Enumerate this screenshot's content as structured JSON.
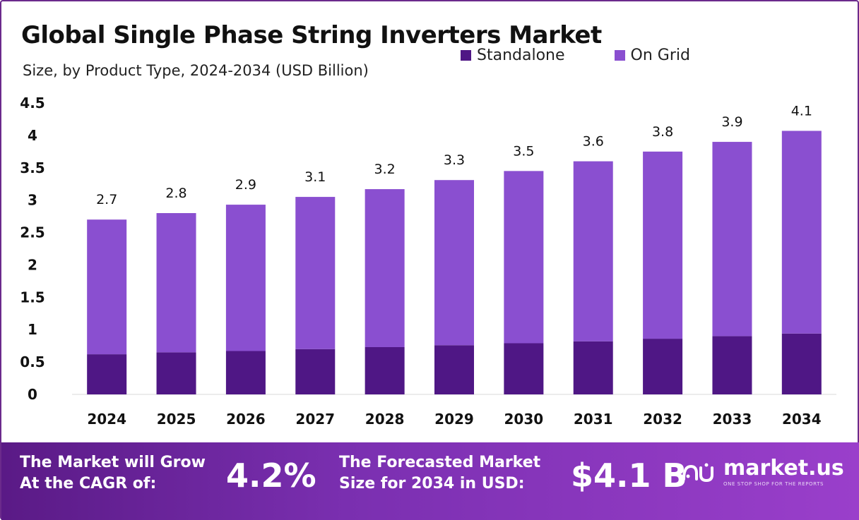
{
  "header": {
    "title": "Global Single Phase String Inverters Market",
    "subtitle": "Size, by Product Type, 2024-2034 (USD Billion)"
  },
  "legend": [
    {
      "label": "Standalone",
      "color": "#4f1785"
    },
    {
      "label": "On Grid",
      "color": "#8a4fd0"
    }
  ],
  "chart_data": {
    "type": "bar",
    "stacked": true,
    "categories": [
      "2024",
      "2025",
      "2026",
      "2027",
      "2028",
      "2029",
      "2030",
      "2031",
      "2032",
      "2033",
      "2034"
    ],
    "series": [
      {
        "name": "Standalone",
        "color": "#4f1785",
        "values": [
          0.62,
          0.65,
          0.67,
          0.7,
          0.73,
          0.76,
          0.79,
          0.82,
          0.86,
          0.9,
          0.94
        ]
      },
      {
        "name": "On Grid",
        "color": "#8a4fd0",
        "values": [
          2.08,
          2.15,
          2.26,
          2.35,
          2.44,
          2.55,
          2.66,
          2.78,
          2.89,
          3.0,
          3.13
        ]
      }
    ],
    "totals": [
      "2.7",
      "2.8",
      "2.9",
      "3.1",
      "3.2",
      "3.3",
      "3.5",
      "3.6",
      "3.8",
      "3.9",
      "4.1"
    ],
    "yticks": [
      "0",
      "0.5",
      "1",
      "1.5",
      "2",
      "2.5",
      "3",
      "3.5",
      "4",
      "4.5"
    ],
    "ylim": [
      0,
      4.5
    ],
    "xlabel": "",
    "ylabel": "",
    "grid": false,
    "legend_position": "top-right"
  },
  "footer": {
    "cagr_text_line1": "The Market will Grow",
    "cagr_text_line2": "At the CAGR of:",
    "cagr_value": "4.2%",
    "forecast_text_line1": "The Forecasted Market",
    "forecast_text_line2": "Size for 2034 in USD:",
    "forecast_value": "$4.1 B",
    "brand_name": "market.us",
    "brand_tagline": "ONE STOP SHOP FOR THE REPORTS"
  }
}
